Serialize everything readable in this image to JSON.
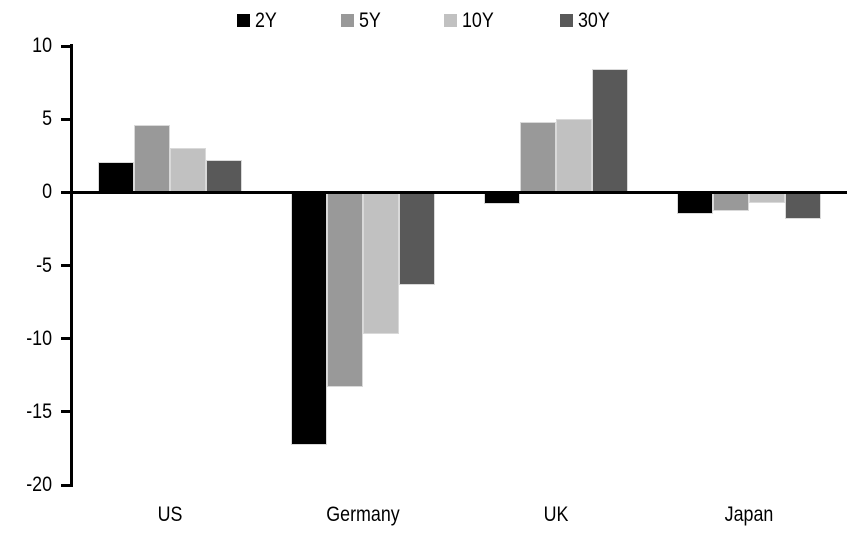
{
  "chart_data": {
    "type": "bar",
    "categories": [
      "US",
      "Germany",
      "UK",
      "Japan"
    ],
    "series": [
      {
        "name": "2Y",
        "color": "#000000",
        "values": [
          2.1,
          -17.3,
          -0.8,
          -1.5
        ]
      },
      {
        "name": "5Y",
        "color": "#999999",
        "values": [
          4.6,
          -13.3,
          4.8,
          -1.3
        ]
      },
      {
        "name": "10Y",
        "color": "#c1c1c1",
        "values": [
          3.0,
          -9.7,
          5.0,
          -0.7
        ]
      },
      {
        "name": "30Y",
        "color": "#595959",
        "values": [
          2.2,
          -6.3,
          8.4,
          -1.8
        ]
      }
    ],
    "ylim": [
      -20,
      10
    ],
    "yticks": [
      10,
      5,
      0,
      -5,
      -10,
      -15,
      -20
    ],
    "legend_position": "top-center",
    "grid": false,
    "colors": {
      "axis": "#000000",
      "bar_outline": "#d9d9d9",
      "background": "#ffffff"
    }
  }
}
